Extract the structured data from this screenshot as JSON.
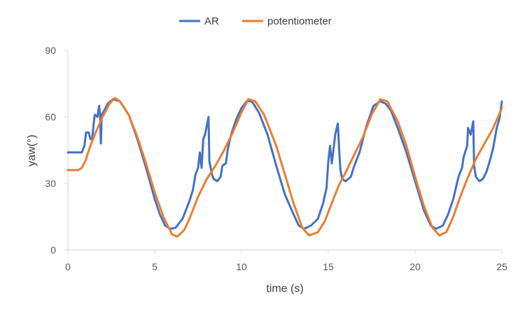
{
  "chart_data": {
    "type": "line",
    "title": "",
    "xlabel": "time (s)",
    "ylabel": "yaw(°)",
    "xlim": [
      0,
      25
    ],
    "ylim": [
      0,
      90
    ],
    "x_ticks": [
      0,
      5,
      10,
      15,
      20,
      25
    ],
    "y_ticks": [
      0,
      30,
      60,
      90
    ],
    "grid": false,
    "legend_position": "top",
    "series": [
      {
        "name": "AR",
        "color": "#4472C4",
        "points": [
          [
            0,
            44
          ],
          [
            0.5,
            44
          ],
          [
            0.8,
            44
          ],
          [
            0.95,
            47
          ],
          [
            1.05,
            53
          ],
          [
            1.2,
            53
          ],
          [
            1.3,
            50
          ],
          [
            1.4,
            50
          ],
          [
            1.5,
            58
          ],
          [
            1.55,
            61
          ],
          [
            1.7,
            60
          ],
          [
            1.8,
            65
          ],
          [
            1.85,
            61
          ],
          [
            1.9,
            48
          ],
          [
            1.95,
            61
          ],
          [
            2.1,
            63
          ],
          [
            2.3,
            66
          ],
          [
            2.6,
            68
          ],
          [
            3.0,
            67
          ],
          [
            3.5,
            61
          ],
          [
            4.0,
            50
          ],
          [
            4.5,
            37
          ],
          [
            5.0,
            23
          ],
          [
            5.3,
            16
          ],
          [
            5.6,
            11
          ],
          [
            5.9,
            9.5
          ],
          [
            6.2,
            10
          ],
          [
            6.6,
            14
          ],
          [
            7.0,
            22
          ],
          [
            7.2,
            27
          ],
          [
            7.35,
            34
          ],
          [
            7.5,
            37
          ],
          [
            7.6,
            44
          ],
          [
            7.7,
            37
          ],
          [
            7.8,
            50
          ],
          [
            7.9,
            52
          ],
          [
            8.0,
            56
          ],
          [
            8.1,
            60
          ],
          [
            8.15,
            40
          ],
          [
            8.2,
            38
          ],
          [
            8.3,
            34
          ],
          [
            8.4,
            32
          ],
          [
            8.6,
            31
          ],
          [
            8.8,
            33
          ],
          [
            8.9,
            38
          ],
          [
            9.1,
            39
          ],
          [
            9.2,
            45
          ],
          [
            9.4,
            52
          ],
          [
            9.7,
            59
          ],
          [
            10.0,
            64
          ],
          [
            10.3,
            67
          ],
          [
            10.6,
            67
          ],
          [
            11.0,
            62
          ],
          [
            11.5,
            52
          ],
          [
            12.0,
            38
          ],
          [
            12.5,
            25
          ],
          [
            13.0,
            16
          ],
          [
            13.3,
            11
          ],
          [
            13.6,
            9.5
          ],
          [
            14.0,
            11
          ],
          [
            14.4,
            14
          ],
          [
            14.7,
            21
          ],
          [
            14.9,
            28
          ],
          [
            15.0,
            40
          ],
          [
            15.1,
            47
          ],
          [
            15.2,
            39
          ],
          [
            15.4,
            52
          ],
          [
            15.55,
            57
          ],
          [
            15.65,
            42
          ],
          [
            15.7,
            36
          ],
          [
            15.8,
            32
          ],
          [
            16.0,
            31
          ],
          [
            16.3,
            33
          ],
          [
            16.5,
            38
          ],
          [
            16.8,
            44
          ],
          [
            17.2,
            56
          ],
          [
            17.6,
            65
          ],
          [
            18.0,
            67
          ],
          [
            18.3,
            66
          ],
          [
            18.6,
            63
          ],
          [
            19.0,
            55
          ],
          [
            19.5,
            44
          ],
          [
            20.0,
            31
          ],
          [
            20.5,
            18
          ],
          [
            20.9,
            11
          ],
          [
            21.2,
            9.5
          ],
          [
            21.6,
            11
          ],
          [
            21.9,
            16
          ],
          [
            22.2,
            23
          ],
          [
            22.5,
            33
          ],
          [
            22.7,
            37
          ],
          [
            22.8,
            42
          ],
          [
            23.0,
            47
          ],
          [
            23.05,
            55
          ],
          [
            23.2,
            52
          ],
          [
            23.35,
            58
          ],
          [
            23.4,
            38
          ],
          [
            23.5,
            33
          ],
          [
            23.7,
            31
          ],
          [
            23.9,
            32
          ],
          [
            24.1,
            35
          ],
          [
            24.3,
            40
          ],
          [
            24.5,
            46
          ],
          [
            24.7,
            55
          ],
          [
            24.85,
            59
          ],
          [
            25,
            67
          ]
        ]
      },
      {
        "name": "potentiometer",
        "color": "#ED7D31",
        "points": [
          [
            0,
            36
          ],
          [
            0.6,
            36
          ],
          [
            0.8,
            37
          ],
          [
            1.0,
            40
          ],
          [
            1.3,
            47
          ],
          [
            1.6,
            53
          ],
          [
            2.0,
            60
          ],
          [
            2.4,
            66
          ],
          [
            2.7,
            68.5
          ],
          [
            3.0,
            67
          ],
          [
            3.5,
            61
          ],
          [
            4.0,
            51
          ],
          [
            4.5,
            39
          ],
          [
            5.0,
            26
          ],
          [
            5.5,
            15
          ],
          [
            6.0,
            7
          ],
          [
            6.3,
            6
          ],
          [
            6.7,
            9
          ],
          [
            7.0,
            14
          ],
          [
            7.5,
            24
          ],
          [
            8.0,
            32
          ],
          [
            8.5,
            38
          ],
          [
            9.0,
            45
          ],
          [
            9.5,
            53
          ],
          [
            10.0,
            62
          ],
          [
            10.4,
            68
          ],
          [
            10.8,
            67
          ],
          [
            11.3,
            61
          ],
          [
            12.0,
            47
          ],
          [
            12.5,
            34
          ],
          [
            13.0,
            21
          ],
          [
            13.5,
            10
          ],
          [
            13.9,
            6.5
          ],
          [
            14.4,
            8
          ],
          [
            14.8,
            13
          ],
          [
            15.2,
            21
          ],
          [
            15.6,
            29
          ],
          [
            16.0,
            35
          ],
          [
            16.5,
            43
          ],
          [
            17.0,
            51
          ],
          [
            17.5,
            61
          ],
          [
            18.0,
            68
          ],
          [
            18.4,
            67
          ],
          [
            19.0,
            58
          ],
          [
            19.5,
            47
          ],
          [
            20.0,
            33
          ],
          [
            20.5,
            20
          ],
          [
            21.0,
            10
          ],
          [
            21.4,
            6.5
          ],
          [
            21.8,
            8
          ],
          [
            22.2,
            15
          ],
          [
            22.6,
            24
          ],
          [
            23.0,
            32
          ],
          [
            23.5,
            41
          ],
          [
            24.0,
            48
          ],
          [
            24.5,
            55
          ],
          [
            25,
            64
          ]
        ]
      }
    ]
  }
}
